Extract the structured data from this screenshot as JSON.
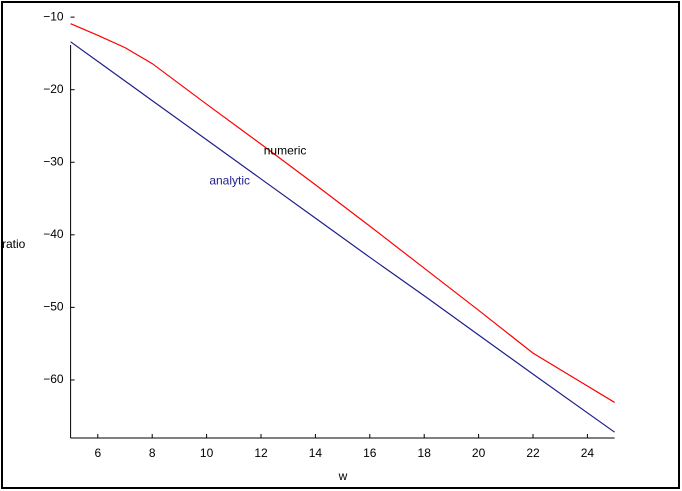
{
  "chart_data": {
    "type": "line",
    "x_label": "w",
    "y_label": "ratio",
    "x": [
      5,
      6,
      7,
      8,
      10,
      12,
      14,
      16,
      18,
      20,
      22,
      25
    ],
    "series": [
      {
        "name": "numeric",
        "color": "#ff0000",
        "values": [
          -10.9,
          -12.5,
          -14.2,
          -16.4,
          -22,
          -27.5,
          -33.1,
          -38.8,
          -44.6,
          -50.4,
          -56.3,
          -63.1
        ]
      },
      {
        "name": "analytic",
        "color": "#1e1e8c",
        "values": [
          -13.4,
          -16.1,
          -18.8,
          -21.5,
          -26.9,
          -32.3,
          -37.7,
          -43.1,
          -48.4,
          -53.8,
          -59.2,
          -67.2
        ]
      }
    ],
    "xlim": [
      5,
      25
    ],
    "ylim": [
      -68,
      -9.5
    ],
    "xticks": [
      6,
      8,
      10,
      12,
      14,
      16,
      18,
      20,
      22,
      24
    ],
    "yticks": [
      {
        "value": -10,
        "label": "−10"
      },
      {
        "value": -20,
        "label": "−20"
      },
      {
        "value": -30,
        "label": "−30"
      },
      {
        "value": -40,
        "label": "−40"
      },
      {
        "value": -50,
        "label": "−50"
      },
      {
        "value": -60,
        "label": "−60"
      }
    ],
    "grid": false
  }
}
